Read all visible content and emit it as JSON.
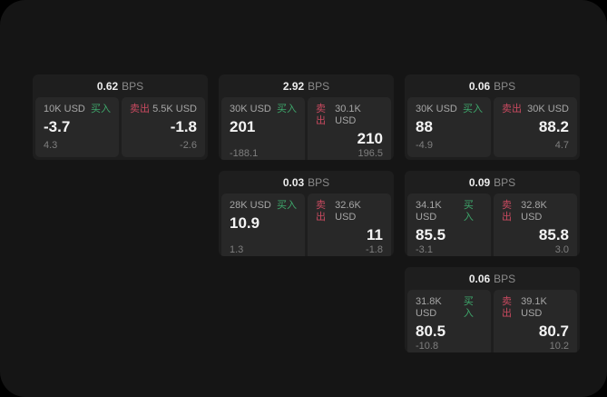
{
  "labels": {
    "bps_unit": "BPS",
    "buy": "买入",
    "sell": "卖出"
  },
  "colors": {
    "canvas_bg": "#151515",
    "card_bg": "#1e1e1e",
    "panel_bg": "#282828",
    "buy_green": "#3ea76b",
    "sell_red": "#c94a60",
    "value_white": "#f4f4f4",
    "muted_gray": "#7f7f7f"
  },
  "cards": [
    {
      "bps": "0.62",
      "buy": {
        "amount": "10K USD",
        "value": "-3.7",
        "delta": "4.3"
      },
      "sell": {
        "amount": "5.5K USD",
        "value": "-1.8",
        "delta": "-2.6"
      }
    },
    {
      "bps": "2.92",
      "buy": {
        "amount": "30K USD",
        "value": "201",
        "delta": "-188.1"
      },
      "sell": {
        "amount": "30.1K USD",
        "value": "210",
        "delta": "196.5"
      }
    },
    {
      "bps": "0.06",
      "buy": {
        "amount": "30K USD",
        "value": "88",
        "delta": "-4.9"
      },
      "sell": {
        "amount": "30K USD",
        "value": "88.2",
        "delta": "4.7"
      }
    },
    {
      "bps": "0.03",
      "buy": {
        "amount": "28K USD",
        "value": "10.9",
        "delta": "1.3"
      },
      "sell": {
        "amount": "32.6K USD",
        "value": "11",
        "delta": "-1.8"
      }
    },
    {
      "bps": "0.09",
      "buy": {
        "amount": "34.1K USD",
        "value": "85.5",
        "delta": "-3.1"
      },
      "sell": {
        "amount": "32.8K USD",
        "value": "85.8",
        "delta": "3.0"
      }
    },
    {
      "bps": "0.06",
      "buy": {
        "amount": "31.8K USD",
        "value": "80.5",
        "delta": "-10.8"
      },
      "sell": {
        "amount": "39.1K USD",
        "value": "80.7",
        "delta": "10.2"
      }
    }
  ]
}
